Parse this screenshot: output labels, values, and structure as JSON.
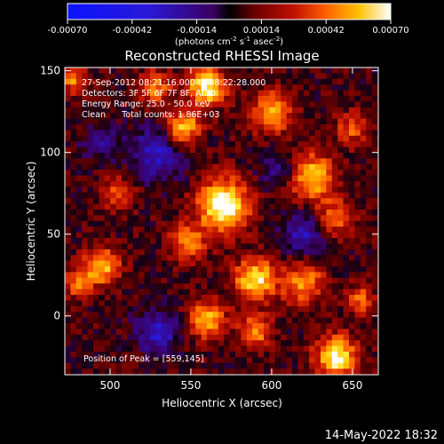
{
  "chart_data": {
    "type": "heatmap",
    "title": "Reconstructed RHESSI Image",
    "xlabel": "Heliocentric X (arcsec)",
    "ylabel": "Heliocentric Y (arcsec)",
    "xlim": [
      472,
      666
    ],
    "ylim": [
      -36,
      152
    ],
    "xticks": [
      500,
      550,
      600,
      650
    ],
    "yticks": [
      0,
      50,
      100,
      150
    ],
    "colorbar": {
      "label_prefix": "(photons cm",
      "label_sup1": "-2",
      "label_mid": " s",
      "label_sup2": "-1",
      "label_suffix": " asec",
      "label_sup3": "-2",
      "label_end": ")",
      "range": [
        -0.0007,
        0.0007
      ],
      "tick_labels": [
        "-0.00070",
        "-0.00042",
        "-0.00014",
        "0.00014",
        "0.00042",
        "0.00070"
      ],
      "colormap": "red-temperature with blue negatives"
    },
    "annotations": [
      "27-Sep-2012 08:21:16.000 to 08:22:28.000",
      "Detectors: 3F 5F 6F 7F 8F, Att 0",
      "Energy Range: 25.0 - 50.0 keV",
      "Clean      Total counts: 1.86E+03"
    ],
    "peak_label": "Position of Peak = [559,145]",
    "peak": {
      "x": 559,
      "y": 145
    },
    "sources": [
      {
        "x": 570,
        "y": 68,
        "sigma": 11,
        "amp": 1.0
      },
      {
        "x": 548,
        "y": 45,
        "sigma": 8,
        "amp": 0.55
      },
      {
        "x": 590,
        "y": 22,
        "sigma": 9,
        "amp": 0.85
      },
      {
        "x": 560,
        "y": -2,
        "sigma": 8,
        "amp": 0.7
      },
      {
        "x": 590,
        "y": -10,
        "sigma": 7,
        "amp": 0.6
      },
      {
        "x": 545,
        "y": 115,
        "sigma": 8,
        "amp": 0.75
      },
      {
        "x": 560,
        "y": 140,
        "sigma": 8,
        "amp": 0.9
      },
      {
        "x": 528,
        "y": 140,
        "sigma": 7,
        "amp": 0.55
      },
      {
        "x": 477,
        "y": 145,
        "sigma": 6,
        "amp": 0.55
      },
      {
        "x": 495,
        "y": 30,
        "sigma": 8,
        "amp": 0.7
      },
      {
        "x": 600,
        "y": 125,
        "sigma": 9,
        "amp": 0.65
      },
      {
        "x": 625,
        "y": 85,
        "sigma": 10,
        "amp": 0.75
      },
      {
        "x": 650,
        "y": 115,
        "sigma": 7,
        "amp": 0.45
      },
      {
        "x": 640,
        "y": 60,
        "sigma": 8,
        "amp": 0.5
      },
      {
        "x": 620,
        "y": 20,
        "sigma": 9,
        "amp": 0.6
      },
      {
        "x": 640,
        "y": -25,
        "sigma": 9,
        "amp": 0.9
      },
      {
        "x": 655,
        "y": 10,
        "sigma": 6,
        "amp": 0.5
      },
      {
        "x": 505,
        "y": 75,
        "sigma": 7,
        "amp": 0.45
      },
      {
        "x": 480,
        "y": 20,
        "sigma": 6,
        "amp": 0.5
      }
    ],
    "negative_regions": [
      {
        "x": 530,
        "y": 100,
        "sigma": 11,
        "amp": 0.55
      },
      {
        "x": 620,
        "y": 50,
        "sigma": 9,
        "amp": 0.45
      },
      {
        "x": 530,
        "y": -10,
        "sigma": 9,
        "amp": 0.5
      },
      {
        "x": 605,
        "y": 90,
        "sigma": 8,
        "amp": 0.35
      },
      {
        "x": 495,
        "y": 105,
        "sigma": 8,
        "amp": 0.3
      }
    ]
  },
  "timestamp": "14-May-2022 18:32"
}
